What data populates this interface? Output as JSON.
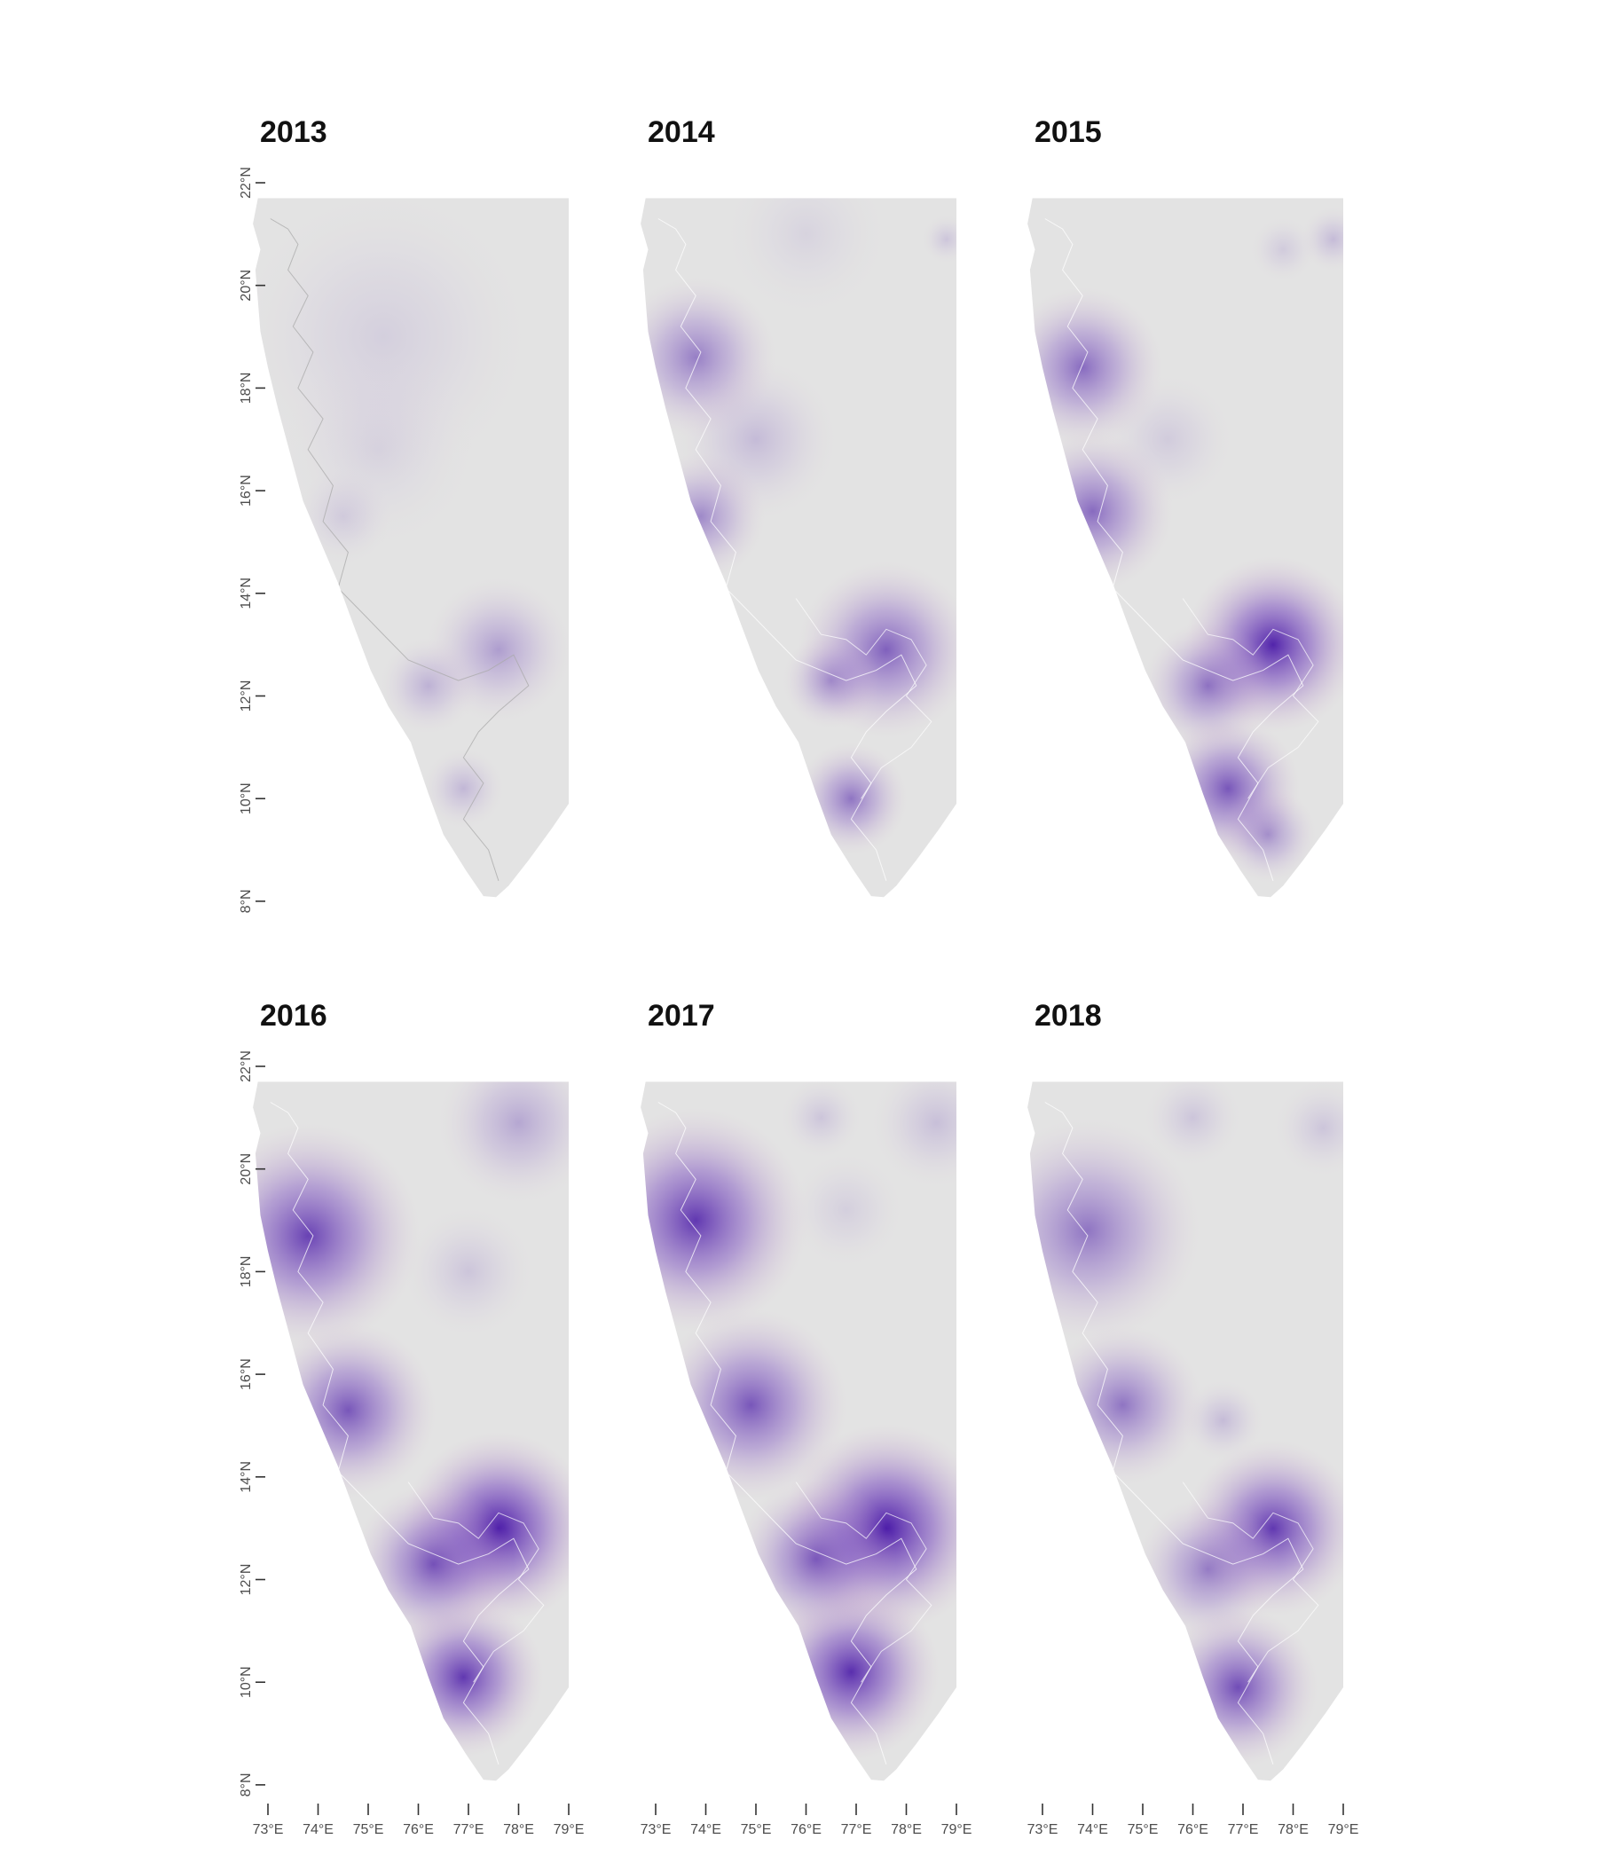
{
  "figure": {
    "type": "faceted-map",
    "palette": {
      "land": "#e3e3e3",
      "hotspot": "#4a1aa8",
      "warm_halo": "#d9b8d2",
      "cool_halo": "#c9cbe0",
      "coast_line": "#aaaaaa",
      "boundary_line": "#ffffff"
    },
    "latitude_ticks": [
      "22°N",
      "20°N",
      "18°N",
      "16°N",
      "14°N",
      "12°N",
      "10°N",
      "8°N"
    ],
    "longitude_ticks": [
      "73°E",
      "74°E",
      "75°E",
      "76°E",
      "77°E",
      "78°E",
      "79°E"
    ],
    "lat_range": [
      8,
      22
    ],
    "lon_range": [
      72.9,
      79
    ],
    "panels": [
      {
        "title": "2013",
        "hotspots": [
          {
            "lon": 77.6,
            "lat": 12.9,
            "intensity": 0.35,
            "spread": 0.9
          },
          {
            "lon": 76.2,
            "lat": 12.2,
            "intensity": 0.25,
            "spread": 0.6
          },
          {
            "lon": 76.9,
            "lat": 10.2,
            "intensity": 0.22,
            "spread": 0.5
          },
          {
            "lon": 74.5,
            "lat": 15.5,
            "intensity": 0.12,
            "spread": 0.6
          },
          {
            "lon": 75.3,
            "lat": 19.0,
            "intensity": 0.1,
            "spread": 1.8
          },
          {
            "lon": 75.2,
            "lat": 16.8,
            "intensity": 0.08,
            "spread": 1.2
          }
        ]
      },
      {
        "title": "2014",
        "hotspots": [
          {
            "lon": 77.6,
            "lat": 12.9,
            "intensity": 0.65,
            "spread": 1.1
          },
          {
            "lon": 73.8,
            "lat": 18.6,
            "intensity": 0.5,
            "spread": 1.0
          },
          {
            "lon": 73.9,
            "lat": 15.5,
            "intensity": 0.45,
            "spread": 0.8
          },
          {
            "lon": 76.9,
            "lat": 10.0,
            "intensity": 0.55,
            "spread": 0.7
          },
          {
            "lon": 76.5,
            "lat": 12.3,
            "intensity": 0.4,
            "spread": 0.6
          },
          {
            "lon": 75.0,
            "lat": 17.0,
            "intensity": 0.2,
            "spread": 1.0
          },
          {
            "lon": 78.8,
            "lat": 20.9,
            "intensity": 0.15,
            "spread": 0.3
          },
          {
            "lon": 76.0,
            "lat": 21.0,
            "intensity": 0.08,
            "spread": 1.0
          }
        ]
      },
      {
        "title": "2015",
        "hotspots": [
          {
            "lon": 77.6,
            "lat": 13.0,
            "intensity": 0.95,
            "spread": 1.1
          },
          {
            "lon": 73.8,
            "lat": 18.4,
            "intensity": 0.6,
            "spread": 1.0
          },
          {
            "lon": 74.0,
            "lat": 15.6,
            "intensity": 0.6,
            "spread": 1.0
          },
          {
            "lon": 76.7,
            "lat": 10.2,
            "intensity": 0.7,
            "spread": 0.9
          },
          {
            "lon": 76.3,
            "lat": 12.2,
            "intensity": 0.55,
            "spread": 0.8
          },
          {
            "lon": 77.5,
            "lat": 9.3,
            "intensity": 0.4,
            "spread": 0.6
          },
          {
            "lon": 78.8,
            "lat": 20.9,
            "intensity": 0.2,
            "spread": 0.4
          },
          {
            "lon": 77.8,
            "lat": 20.7,
            "intensity": 0.12,
            "spread": 0.4
          },
          {
            "lon": 75.5,
            "lat": 17.0,
            "intensity": 0.12,
            "spread": 0.8
          }
        ]
      },
      {
        "title": "2016",
        "hotspots": [
          {
            "lon": 77.6,
            "lat": 13.0,
            "intensity": 1.0,
            "spread": 1.2
          },
          {
            "lon": 73.8,
            "lat": 18.7,
            "intensity": 0.8,
            "spread": 1.4
          },
          {
            "lon": 74.6,
            "lat": 15.3,
            "intensity": 0.7,
            "spread": 1.1
          },
          {
            "lon": 76.9,
            "lat": 10.1,
            "intensity": 0.85,
            "spread": 1.0
          },
          {
            "lon": 76.3,
            "lat": 12.3,
            "intensity": 0.7,
            "spread": 1.0
          },
          {
            "lon": 78.0,
            "lat": 20.9,
            "intensity": 0.3,
            "spread": 1.0
          },
          {
            "lon": 77.0,
            "lat": 18.0,
            "intensity": 0.15,
            "spread": 0.8
          }
        ]
      },
      {
        "title": "2017",
        "hotspots": [
          {
            "lon": 77.6,
            "lat": 13.0,
            "intensity": 1.0,
            "spread": 1.3
          },
          {
            "lon": 73.8,
            "lat": 19.0,
            "intensity": 0.85,
            "spread": 1.4
          },
          {
            "lon": 74.9,
            "lat": 15.4,
            "intensity": 0.7,
            "spread": 1.2
          },
          {
            "lon": 76.9,
            "lat": 10.2,
            "intensity": 0.9,
            "spread": 1.1
          },
          {
            "lon": 76.2,
            "lat": 12.4,
            "intensity": 0.65,
            "spread": 1.0
          },
          {
            "lon": 78.6,
            "lat": 20.9,
            "intensity": 0.18,
            "spread": 0.8
          },
          {
            "lon": 76.3,
            "lat": 21.0,
            "intensity": 0.15,
            "spread": 0.5
          },
          {
            "lon": 76.8,
            "lat": 19.2,
            "intensity": 0.1,
            "spread": 0.7
          }
        ]
      },
      {
        "title": "2018",
        "hotspots": [
          {
            "lon": 77.6,
            "lat": 13.0,
            "intensity": 0.85,
            "spread": 1.1
          },
          {
            "lon": 73.9,
            "lat": 18.8,
            "intensity": 0.55,
            "spread": 1.4
          },
          {
            "lon": 74.6,
            "lat": 15.4,
            "intensity": 0.55,
            "spread": 1.0
          },
          {
            "lon": 76.9,
            "lat": 9.9,
            "intensity": 0.75,
            "spread": 1.0
          },
          {
            "lon": 76.3,
            "lat": 12.2,
            "intensity": 0.5,
            "spread": 0.9
          },
          {
            "lon": 76.0,
            "lat": 21.0,
            "intensity": 0.15,
            "spread": 0.6
          },
          {
            "lon": 78.6,
            "lat": 20.8,
            "intensity": 0.15,
            "spread": 0.6
          },
          {
            "lon": 76.6,
            "lat": 15.1,
            "intensity": 0.2,
            "spread": 0.5
          }
        ]
      }
    ]
  }
}
